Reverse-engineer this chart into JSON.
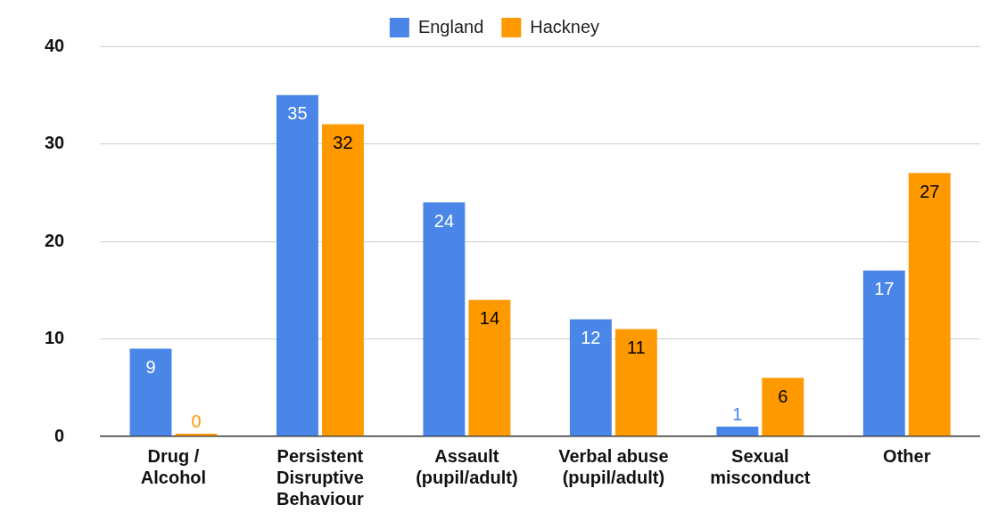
{
  "chart_data": {
    "type": "bar",
    "categories": [
      "Drug / Alcohol",
      "Persistent Disruptive Behaviour",
      "Assault (pupil/adult)",
      "Verbal abuse (pupil/adult)",
      "Sexual misconduct",
      "Other"
    ],
    "series": [
      {
        "name": "England",
        "color": "#4a86e8",
        "values": [
          9,
          35,
          24,
          12,
          1,
          17
        ]
      },
      {
        "name": "Hackney",
        "color": "#ff9900",
        "values": [
          0,
          32,
          14,
          11,
          6,
          27
        ]
      }
    ],
    "ylim": [
      0,
      40
    ],
    "yticks": [
      0,
      10,
      20,
      30,
      40
    ],
    "grid": "y",
    "legend": "top",
    "data_labels": true
  }
}
